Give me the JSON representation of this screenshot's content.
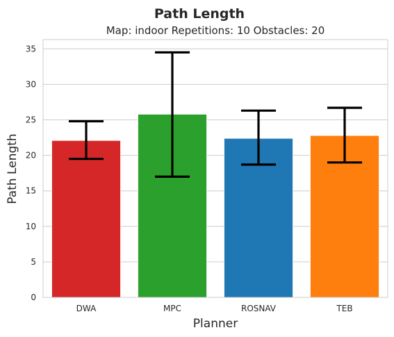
{
  "chart_data": {
    "type": "bar",
    "title": "Path Length",
    "subtitle": "Map: indoor Repetitions: 10 Obstacles: 20",
    "xlabel": "Planner",
    "ylabel": "Path Length",
    "categories": [
      "DWA",
      "MPC",
      "ROSNAV",
      "TEB"
    ],
    "values": [
      22.1,
      25.8,
      22.4,
      22.8
    ],
    "error_low": [
      19.5,
      17.0,
      18.7,
      19.0
    ],
    "error_high": [
      24.8,
      34.5,
      26.3,
      26.7
    ],
    "colors": [
      "#d62728",
      "#2ca02c",
      "#1f77b4",
      "#ff7f0e"
    ],
    "ylim": [
      0,
      36.3
    ],
    "yticks": [
      0,
      5,
      10,
      15,
      20,
      25,
      30,
      35
    ],
    "grid": true,
    "style": "whitegrid"
  }
}
